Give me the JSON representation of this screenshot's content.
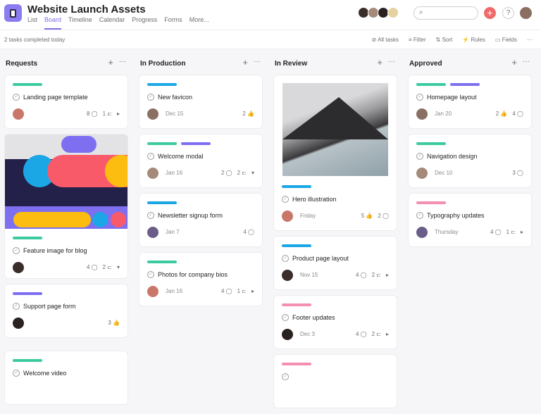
{
  "header": {
    "title": "Website Launch Assets",
    "tabs": [
      "List",
      "Board",
      "Timeline",
      "Calendar",
      "Progress",
      "Forms",
      "More..."
    ],
    "active_tab": "Board",
    "search_placeholder": "",
    "add_icon": "plus-icon",
    "help_label": "?"
  },
  "toolbar": {
    "status": "2 tasks completed today",
    "all_tasks": "All tasks",
    "filter": "Filter",
    "sort": "Sort",
    "rules": "Rules",
    "fields": "Fields",
    "more": "···"
  },
  "colors": {
    "green": "#3ccba0",
    "blue": "#1ba7e6",
    "purple": "#7e6ff0",
    "pink": "#f48fb1",
    "accent": "#7f70e8",
    "add": "#f06a6a"
  },
  "columns": [
    {
      "name": "Requests",
      "cards": [
        {
          "title": "Landing page template",
          "tags": [
            "green"
          ],
          "date": "",
          "meta": [
            "8 ◯",
            "1 ⊏",
            "▸"
          ]
        },
        {
          "title": "Feature image for blog",
          "tags": [
            "green"
          ],
          "date": "",
          "meta": [
            "4 ◯",
            "2 ⊏",
            "▾"
          ],
          "image": "abstract"
        },
        {
          "title": "Support page form",
          "tags": [
            "purple"
          ],
          "date": "",
          "meta": [
            "3 👍"
          ]
        },
        {
          "title": "Welcome video",
          "tags": [
            "green"
          ],
          "date": "",
          "meta": []
        }
      ]
    },
    {
      "name": "In Production",
      "cards": [
        {
          "title": "New favicon",
          "tags": [
            "blue"
          ],
          "date": "Dec 15",
          "meta": [
            "2 👍"
          ]
        },
        {
          "title": "Welcome modal",
          "tags": [
            "green",
            "purple"
          ],
          "date": "Jan 16",
          "meta": [
            "2 ◯",
            "2 ⊏",
            "▾"
          ]
        },
        {
          "title": "Newsletter signup form",
          "tags": [
            "blue"
          ],
          "date": "Jan 7",
          "meta": [
            "4 ◯"
          ]
        },
        {
          "title": "Photos for company bios",
          "tags": [
            "green"
          ],
          "date": "Jan 16",
          "meta": [
            "4 ◯",
            "1 ⊏",
            "▸"
          ]
        }
      ]
    },
    {
      "name": "In Review",
      "cards": [
        {
          "title": "Hero illustration",
          "tags": [
            "blue"
          ],
          "date": "Friday",
          "meta": [
            "5 👍",
            "2 ◯"
          ],
          "image": "mountain"
        },
        {
          "title": "Product page layout",
          "tags": [
            "blue"
          ],
          "date": "Nov 15",
          "meta": [
            "4 ◯",
            "2 ⊏",
            "▸"
          ]
        },
        {
          "title": "Footer updates",
          "tags": [
            "pink"
          ],
          "date": "Dec 3",
          "meta": [
            "4 ◯",
            "2 ⊏",
            "▸"
          ]
        },
        {
          "title": "",
          "tags": [
            "pink"
          ],
          "date": "",
          "meta": []
        }
      ]
    },
    {
      "name": "Approved",
      "cards": [
        {
          "title": "Homepage layout",
          "tags": [
            "green",
            "purple"
          ],
          "date": "Jan 20",
          "meta": [
            "2 👍",
            "4 ◯"
          ]
        },
        {
          "title": "Navigation design",
          "tags": [
            "green"
          ],
          "date": "Dec 10",
          "meta": [
            "3 ◯"
          ]
        },
        {
          "title": "Typography updates",
          "tags": [
            "pink"
          ],
          "date": "Thursday",
          "meta": [
            "4 ◯",
            "1 ⊏",
            "▸"
          ]
        }
      ]
    }
  ]
}
